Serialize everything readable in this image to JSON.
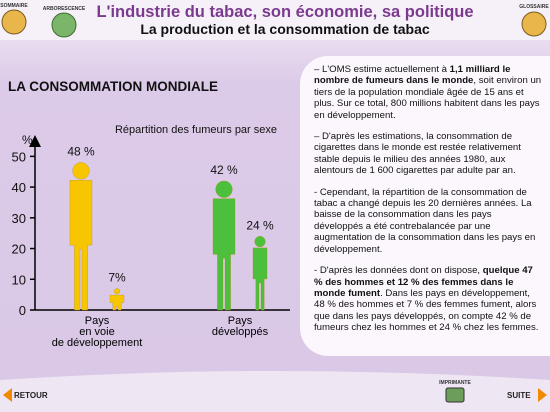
{
  "header": {
    "title": "L'industrie du tabac, son économie, sa politique",
    "subtitle": "La production et la consommation de tabac"
  },
  "nav": {
    "sommaire": "SOMMAIRE",
    "arborescence": "ARBORESCENCE",
    "glossaire": "GLOSSAIRE",
    "retour": "RETOUR",
    "imprimante": "IMPRIMANTE",
    "suite": "SUITE"
  },
  "section_title": "LA CONSOMMATION MONDIALE",
  "chart_data": {
    "type": "figure-bar",
    "title": "Répartition des fumeurs par sexe",
    "y_label": "%",
    "categories": [
      "Pays\nen voie\nde développement",
      "Pays\ndéveloppés"
    ],
    "colors": [
      "#f7c600",
      "#4cbf3c"
    ],
    "series": [
      {
        "values": [
          48,
          42
        ],
        "value_labels": [
          "48 %",
          "42 %"
        ]
      },
      {
        "values": [
          7,
          24
        ],
        "value_labels": [
          "7%",
          "24 %"
        ]
      }
    ],
    "ylim": [
      0,
      55
    ],
    "yticks": [
      0,
      10,
      20,
      30,
      40,
      50
    ]
  },
  "text_panel": {
    "paragraphs": [
      [
        {
          "text": "– L'OMS estime actuellement à "
        },
        {
          "text": "1,1 milliard le nombre de fumeurs dans le monde",
          "bold": true
        },
        {
          "text": ", soit environ un tiers de la population mondiale âgée de 15 ans et plus. Sur ce total, 800 millions habitent dans les pays en développement."
        }
      ],
      [
        {
          "text": "– D'après les estimations, la consommation de cigarettes dans le monde est restée relativement stable depuis le milieu des années 1980, aux alentours de 1 600 cigarettes par adulte par an."
        }
      ],
      [
        {
          "text": "- Cependant, la répartition de la consommation de tabac a changé depuis les 20 dernières années. La baisse de la consommation dans les pays développés a été contrebalancée par une augmentation de la consommation dans les pays en développement."
        }
      ],
      [
        {
          "text": "- D'après les données dont on dispose, "
        },
        {
          "text": "quelque 47 % des hommes et 12 % des femmes dans le monde fument",
          "bold": true
        },
        {
          "text": ". Dans les pays en développement, 48 % des hommes et 7 % des femmes fument, alors que dans les pays développés, on compte 42 % de fumeurs chez les hommes et 24 % chez les femmes."
        }
      ]
    ]
  }
}
